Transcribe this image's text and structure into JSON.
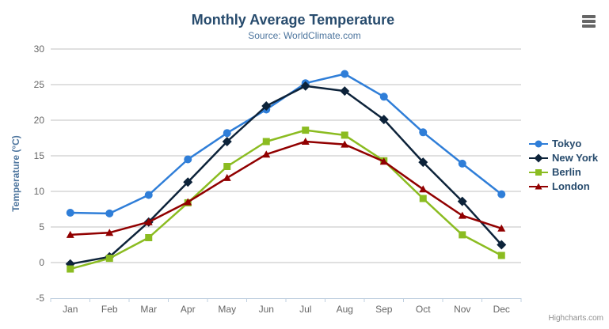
{
  "header": {
    "title": "Monthly Average Temperature",
    "subtitle": "Source: WorldClimate.com"
  },
  "credits": "Highcharts.com",
  "colors": {
    "title": "#274b6d",
    "subtitle": "#4d759e",
    "axis_title": "#4d759e",
    "tick_label": "#666666",
    "gridline": "#c0c0c0",
    "axis_line": "#c0d0e0",
    "legend_text": "#274b6d"
  },
  "chart_data": {
    "type": "line",
    "title": "Monthly Average Temperature",
    "subtitle": "Source: WorldClimate.com",
    "xlabel": "",
    "ylabel": "Temperature (°C)",
    "categories": [
      "Jan",
      "Feb",
      "Mar",
      "Apr",
      "May",
      "Jun",
      "Jul",
      "Aug",
      "Sep",
      "Oct",
      "Nov",
      "Dec"
    ],
    "ylim": [
      -5,
      30
    ],
    "ytick_step": 5,
    "grid": true,
    "legend_position": "right",
    "series": [
      {
        "name": "Tokyo",
        "color": "#2f7ed8",
        "marker": "circle",
        "values": [
          7.0,
          6.9,
          9.5,
          14.5,
          18.2,
          21.5,
          25.2,
          26.5,
          23.3,
          18.3,
          13.9,
          9.6
        ]
      },
      {
        "name": "New York",
        "color": "#0d233a",
        "marker": "diamond",
        "values": [
          -0.2,
          0.8,
          5.7,
          11.3,
          17.0,
          22.0,
          24.8,
          24.1,
          20.1,
          14.1,
          8.6,
          2.5
        ]
      },
      {
        "name": "Berlin",
        "color": "#8bbc21",
        "marker": "square",
        "values": [
          -0.9,
          0.6,
          3.5,
          8.4,
          13.5,
          17.0,
          18.6,
          17.9,
          14.3,
          9.0,
          3.9,
          1.0
        ]
      },
      {
        "name": "London",
        "color": "#910000",
        "marker": "triangle",
        "values": [
          3.9,
          4.2,
          5.7,
          8.5,
          11.9,
          15.2,
          17.0,
          16.6,
          14.2,
          10.3,
          6.6,
          4.8
        ]
      }
    ]
  }
}
